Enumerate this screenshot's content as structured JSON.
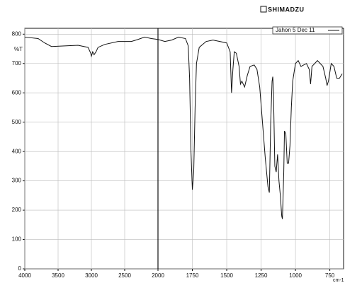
{
  "chart_data": {
    "type": "line",
    "logo": "SHIMADZU",
    "ylabel": "%T",
    "xlabel": "cm-1",
    "x": [
      4000,
      3800,
      3700,
      3600,
      3400,
      3200,
      3050,
      3010,
      3000,
      2980,
      2960,
      2930,
      2900,
      2800,
      2600,
      2400,
      2300,
      2200,
      2100,
      2000,
      1950,
      1900,
      1850,
      1800,
      1780,
      1770,
      1760,
      1750,
      1740,
      1730,
      1720,
      1700,
      1650,
      1600,
      1550,
      1500,
      1475,
      1465,
      1455,
      1445,
      1430,
      1410,
      1400,
      1390,
      1370,
      1350,
      1330,
      1300,
      1280,
      1260,
      1250,
      1220,
      1200,
      1190,
      1180,
      1170,
      1165,
      1160,
      1150,
      1140,
      1130,
      1120,
      1110,
      1100,
      1095,
      1085,
      1080,
      1070,
      1060,
      1050,
      1040,
      1030,
      1020,
      1000,
      980,
      960,
      940,
      920,
      900,
      890,
      880,
      860,
      840,
      820,
      800,
      780,
      770,
      760,
      740,
      720,
      700,
      680,
      660
    ],
    "series": [
      {
        "name": "Jahon 5 Dec 11",
        "color": "#111111",
        "values": [
          790,
          785,
          770,
          758,
          760,
          762,
          755,
          735,
          725,
          740,
          730,
          740,
          755,
          765,
          775,
          775,
          782,
          790,
          785,
          782,
          775,
          780,
          790,
          785,
          760,
          650,
          400,
          270,
          330,
          550,
          700,
          755,
          775,
          780,
          775,
          770,
          740,
          600,
          680,
          740,
          735,
          690,
          630,
          640,
          620,
          660,
          690,
          695,
          680,
          620,
          560,
          380,
          280,
          260,
          500,
          640,
          655,
          600,
          350,
          330,
          390,
          300,
          250,
          180,
          170,
          330,
          470,
          460,
          360,
          360,
          420,
          550,
          640,
          700,
          710,
          690,
          695,
          700,
          680,
          630,
          690,
          700,
          710,
          700,
          690,
          650,
          625,
          640,
          700,
          690,
          650,
          650,
          665
        ]
      }
    ],
    "xlim": [
      4000,
      650
    ],
    "xbreak": 2000,
    "xticks": [
      4000,
      3500,
      3000,
      2500,
      2000,
      1750,
      1500,
      1250,
      1000,
      750
    ],
    "ylim": [
      0,
      820
    ],
    "yticks": [
      0,
      100,
      200,
      300,
      400,
      500,
      600,
      700,
      800
    ],
    "grid": true,
    "legend": "top-right"
  }
}
